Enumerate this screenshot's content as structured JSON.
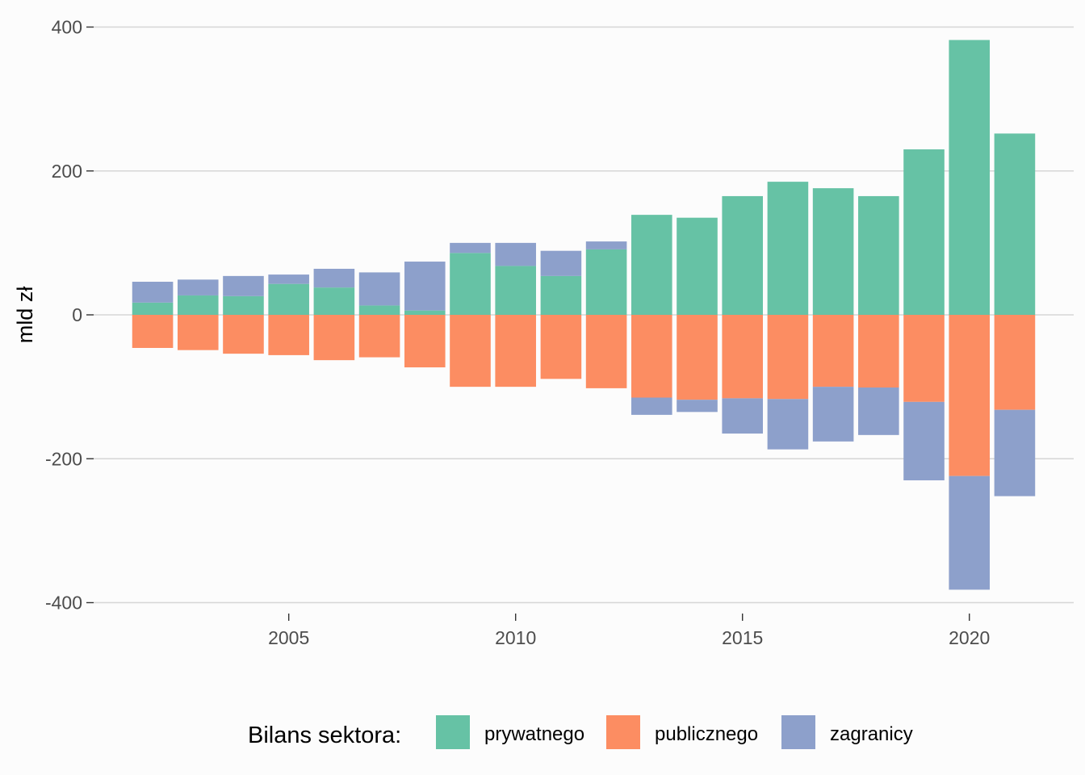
{
  "chart_data": {
    "type": "bar",
    "stacked": true,
    "diverging": true,
    "x": [
      2002,
      2003,
      2004,
      2005,
      2006,
      2007,
      2008,
      2009,
      2010,
      2011,
      2012,
      2013,
      2014,
      2015,
      2016,
      2017,
      2018,
      2019,
      2020,
      2021
    ],
    "series": [
      {
        "name": "prywatnego",
        "color": "#66c2a5",
        "values": [
          17,
          27,
          26,
          43,
          38,
          13,
          6,
          86,
          68,
          54,
          91,
          139,
          135,
          165,
          185,
          176,
          165,
          230,
          382,
          252
        ]
      },
      {
        "name": "publicznego",
        "color": "#fc8d62",
        "values": [
          -46,
          -49,
          -54,
          -56,
          -63,
          -59,
          -73,
          -100,
          -100,
          -89,
          -102,
          -115,
          -118,
          -116,
          -117,
          -100,
          -101,
          -121,
          -224,
          -132
        ]
      },
      {
        "name": "zagranicy",
        "color": "#8da0cb",
        "values": [
          29,
          22,
          28,
          13,
          26,
          46,
          68,
          14,
          32,
          35,
          11,
          -24,
          -17,
          -49,
          -70,
          -76,
          -66,
          -109,
          -158,
          -120
        ]
      }
    ],
    "ylabel": "mld zł",
    "xlabel": "",
    "ylim": [
      -420,
      420
    ],
    "yticks": [
      400,
      200,
      0,
      -200,
      -400
    ],
    "yticklabels": [
      "400",
      "200",
      "0",
      "-200",
      "-400"
    ],
    "xticks": [
      2005,
      2010,
      2015,
      2020
    ],
    "xticklabels": [
      "2005",
      "2010",
      "2015",
      "2020"
    ],
    "xlim": [
      2000.7,
      2022.3
    ],
    "grid": true,
    "legend": {
      "title": "Bilans sektora:",
      "position": "bottom"
    }
  }
}
